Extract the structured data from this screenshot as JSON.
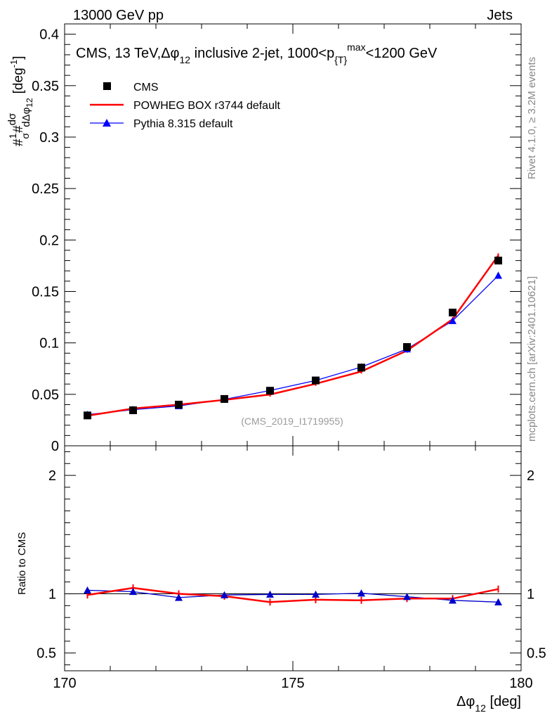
{
  "header": {
    "left": "13000 GeV pp",
    "right": "Jets"
  },
  "side_labels": {
    "top": "Rivet 4.1.0, ≥ 3.2M events",
    "bottom": "mcplots.cern.ch [arXiv:2401.10621]"
  },
  "watermark": "(CMS_2019_I1719955)",
  "chart_data": {
    "type": "line",
    "title": {
      "prefix": "CMS, 13 TeV,",
      "delta": "Δφ",
      "delta_sub": "12",
      "middle": " inclusive 2-jet, 1000<p",
      "pt_sub": "{T}",
      "pt_sup": "max",
      "suffix": "<1200 GeV"
    },
    "xlabel": {
      "main": "Δφ",
      "sub": "12",
      "unit": " [deg]"
    },
    "ylabel": {
      "prefix": "#",
      "frac1_num": "1",
      "frac1_den": "σ",
      "mid": "#",
      "frac2_num": "dσ",
      "frac2_den": "dΔφ",
      "frac2_den_sub": "12",
      "unit": "[deg",
      "unit_sup": "-1",
      "unit_close": "]"
    },
    "ratio_ylabel": "Ratio to CMS",
    "xlim": [
      170,
      180
    ],
    "ylim": [
      0,
      0.41
    ],
    "ratio_ylim": [
      0.35,
      2.25
    ],
    "x_ticks": [
      "170",
      "175",
      "180"
    ],
    "x_tick_values": [
      170,
      175,
      180
    ],
    "y_ticks": [
      "0.05",
      "0.1",
      "0.15",
      "0.2",
      "0.25",
      "0.3",
      "0.35",
      "0.4"
    ],
    "y_tick_values": [
      0.05,
      0.1,
      0.15,
      0.2,
      0.25,
      0.3,
      0.35,
      0.4
    ],
    "y_zero_label": "0",
    "ratio_ticks": [
      "0.5",
      "1",
      "2"
    ],
    "ratio_tick_values": [
      0.5,
      1,
      2
    ],
    "x": [
      170.5,
      171.5,
      172.5,
      173.5,
      174.5,
      175.5,
      176.5,
      177.5,
      178.5,
      179.5
    ],
    "series": [
      {
        "name": "CMS",
        "color": "#000000",
        "style": "markers-square",
        "values": [
          0.0295,
          0.0345,
          0.04,
          0.0455,
          0.0535,
          0.0635,
          0.076,
          0.096,
          0.1295,
          0.18
        ]
      },
      {
        "name": "POWHEG BOX r3744 default",
        "color": "#ff0000",
        "style": "line",
        "values": [
          0.0292,
          0.0362,
          0.04,
          0.0446,
          0.0498,
          0.0603,
          0.0722,
          0.0925,
          0.123,
          0.185
        ]
      },
      {
        "name": "Pythia 8.315 default",
        "color": "#0000ff",
        "style": "line-triangles",
        "values": [
          0.0303,
          0.0351,
          0.0387,
          0.0451,
          0.0537,
          0.0635,
          0.0765,
          0.094,
          0.1215,
          0.1655
        ]
      }
    ],
    "ratios": [
      {
        "name": "POWHEG BOX r3744 default",
        "color": "#ff0000",
        "values": [
          0.99,
          1.05,
          1.0,
          0.98,
          0.93,
          0.95,
          0.945,
          0.96,
          0.96,
          1.04
        ]
      },
      {
        "name": "Pythia 8.315 default",
        "color": "#0000cc",
        "values": [
          1.03,
          1.018,
          0.968,
          0.99,
          0.995,
          0.995,
          1.005,
          0.975,
          0.945,
          0.93
        ]
      }
    ],
    "legend": [
      "CMS",
      "POWHEG BOX r3744 default",
      "Pythia 8.315 default"
    ],
    "legend_position": "top-left"
  }
}
